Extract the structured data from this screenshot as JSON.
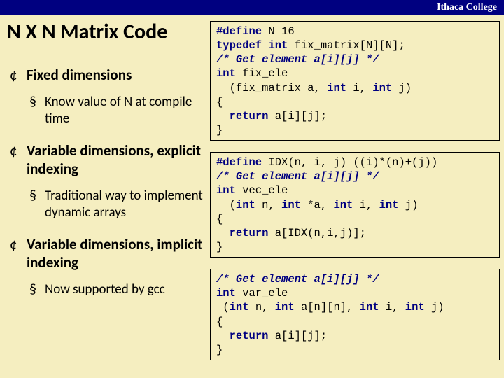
{
  "header": "Ithaca College",
  "title": "N X N Matrix Code",
  "bullets": [
    {
      "head": "Fixed dimensions",
      "sub": [
        "Know value of N at compile time"
      ]
    },
    {
      "head": "Variable dimensions, explicit indexing",
      "sub": [
        "Traditional way to implement dynamic arrays"
      ]
    },
    {
      "head": "Variable dimensions, implicit indexing",
      "sub": [
        "Now supported by gcc"
      ]
    }
  ],
  "code1": {
    "l1a": "#define",
    "l1b": " N 16",
    "l2a": "typedef",
    "l2b": " ",
    "l2c": "int",
    "l2d": " fix_matrix[N][N];",
    "l3": "/* Get element a[i][j] */",
    "l4a": "int",
    "l4b": " fix_ele",
    "l5a": "  (fix_matrix a, ",
    "l5b": "int",
    "l5c": " i, ",
    "l5d": "int",
    "l5e": " j)",
    "l6": "{",
    "l7a": "  ",
    "l7b": "return",
    "l7c": " a[i][j];",
    "l8": "}"
  },
  "code2": {
    "l1a": "#define",
    "l1b": " IDX(n, i, j) ((i)*(n)+(j))",
    "l2": "/* Get element a[i][j] */",
    "l3a": "int",
    "l3b": " vec_ele",
    "l4a": "  (",
    "l4b": "int",
    "l4c": " n, ",
    "l4d": "int",
    "l4e": " *a, ",
    "l4f": "int",
    "l4g": " i, ",
    "l4h": "int",
    "l4i": " j)",
    "l5": "{",
    "l6a": "  ",
    "l6b": "return",
    "l6c": " a[IDX(n,i,j)];",
    "l7": "}"
  },
  "code3": {
    "l1": "/* Get element a[i][j] */",
    "l2a": "int",
    "l2b": " var_ele",
    "l3a": " (",
    "l3b": "int",
    "l3c": " n, ",
    "l3d": "int",
    "l3e": " a[n][n], ",
    "l3f": "int",
    "l3g": " i, ",
    "l3h": "int",
    "l3i": " j)",
    "l4": "{",
    "l5a": "  ",
    "l5b": "return",
    "l5c": " a[i][j];",
    "l6": "}"
  }
}
